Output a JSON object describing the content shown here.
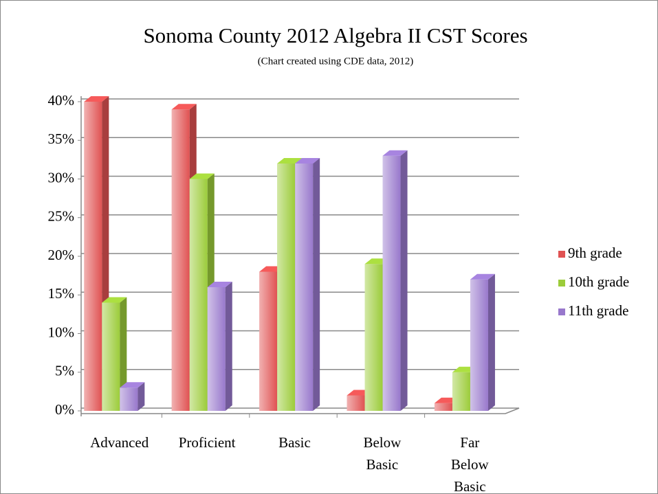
{
  "chart_data": {
    "type": "bar3d",
    "title": "Sonoma County 2012 Algebra II CST Scores",
    "subtitle": "(Chart created using CDE data, 2012)",
    "categories": [
      "Advanced",
      "Proficient",
      "Basic",
      "Below Basic",
      "Far Below Basic"
    ],
    "series": [
      {
        "name": "9th grade",
        "color": "#e05252",
        "values": [
          40,
          39,
          18,
          2,
          1
        ]
      },
      {
        "name": "10th grade",
        "color": "#9ccc3a",
        "values": [
          14,
          30,
          32,
          19,
          5
        ]
      },
      {
        "name": "11th grade",
        "color": "#9878cc",
        "values": [
          3,
          16,
          32,
          33,
          17
        ]
      }
    ],
    "ylim": [
      0,
      40
    ],
    "yticks": [
      {
        "value": 0,
        "label": "0%"
      },
      {
        "value": 5,
        "label": "5%"
      },
      {
        "value": 10,
        "label": "10%"
      },
      {
        "value": 15,
        "label": "15%"
      },
      {
        "value": 20,
        "label": "20%"
      },
      {
        "value": 25,
        "label": "25%"
      },
      {
        "value": 30,
        "label": "30%"
      },
      {
        "value": 35,
        "label": "35%"
      },
      {
        "value": 40,
        "label": "40%"
      }
    ],
    "grid": true,
    "legend": "right"
  }
}
